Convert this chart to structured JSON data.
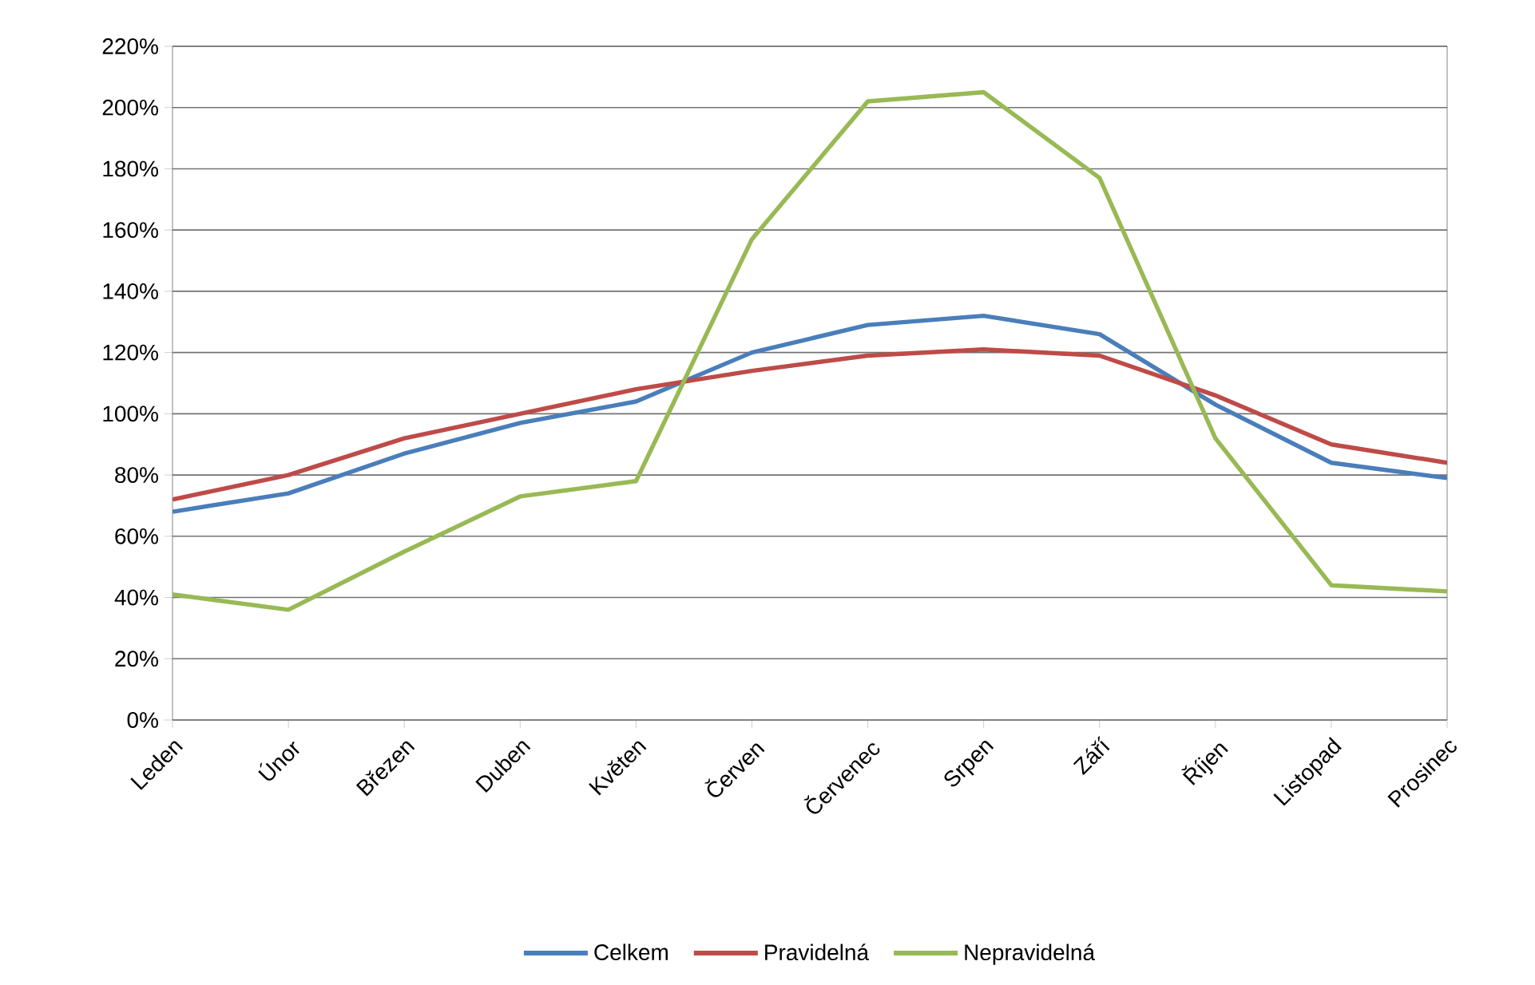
{
  "chart_data": {
    "type": "line",
    "categories": [
      "Leden",
      "Únor",
      "Březen",
      "Duben",
      "Květen",
      "Červen",
      "Červenec",
      "Srpen",
      "Září",
      "Říjen",
      "Listopad",
      "Prosinec"
    ],
    "series": [
      {
        "name": "Celkem",
        "color": "#4a7ebb",
        "values": [
          68,
          74,
          87,
          97,
          104,
          120,
          129,
          132,
          126,
          103,
          84,
          79
        ]
      },
      {
        "name": "Pravidelná",
        "color": "#be4b48",
        "values": [
          72,
          80,
          92,
          100,
          108,
          114,
          119,
          121,
          119,
          106,
          90,
          84
        ]
      },
      {
        "name": "Nepravidelná",
        "color": "#98b954",
        "values": [
          41,
          36,
          55,
          73,
          78,
          157,
          202,
          205,
          177,
          92,
          44,
          42
        ]
      }
    ],
    "ylim": [
      0,
      220
    ],
    "yticks": [
      {
        "value": 0,
        "label": "0%"
      },
      {
        "value": 20,
        "label": "20%"
      },
      {
        "value": 40,
        "label": "40%"
      },
      {
        "value": 60,
        "label": "60%"
      },
      {
        "value": 80,
        "label": "80%"
      },
      {
        "value": 100,
        "label": "100%"
      },
      {
        "value": 120,
        "label": "120%"
      },
      {
        "value": 140,
        "label": "140%"
      },
      {
        "value": 160,
        "label": "160%"
      },
      {
        "value": 180,
        "label": "180%"
      },
      {
        "value": 200,
        "label": "200%"
      },
      {
        "value": 220,
        "label": "220%"
      }
    ],
    "grid": "y",
    "legend": "bottom",
    "line_style": "solid"
  }
}
